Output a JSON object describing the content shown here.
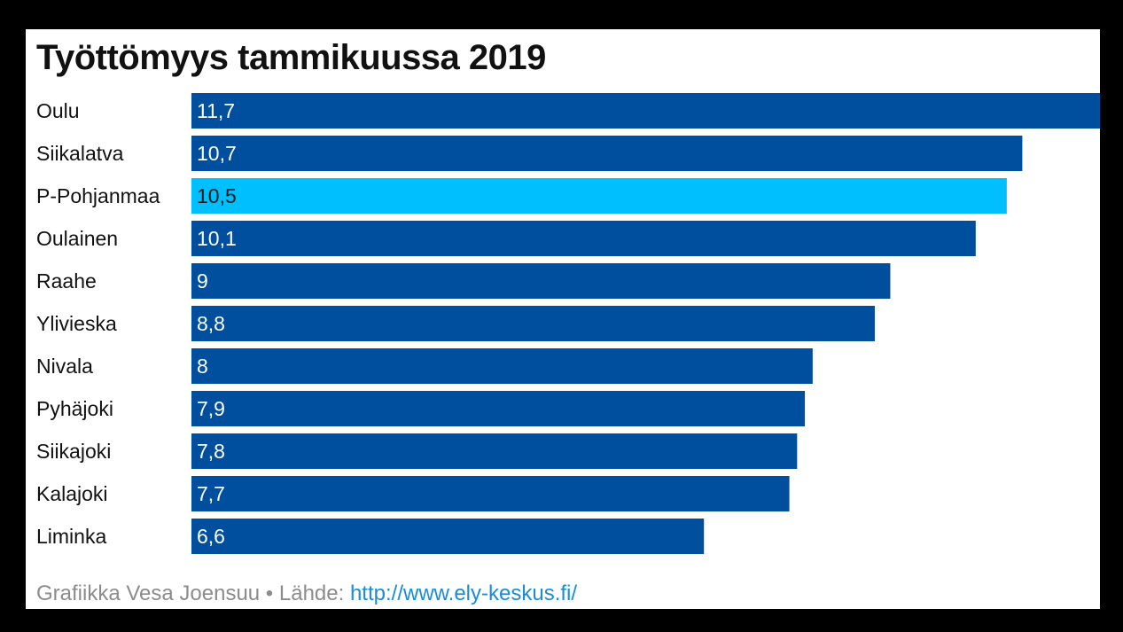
{
  "chart_data": {
    "type": "bar",
    "orientation": "horizontal",
    "title": "Työttömyys tammikuussa 2019",
    "categories": [
      "Oulu",
      "Siikalatva",
      "P-Pohjanmaa",
      "Oulainen",
      "Raahe",
      "Ylivieska",
      "Nivala",
      "Pyhäjoki",
      "Siikajoki",
      "Kalajoki",
      "Liminka"
    ],
    "values": [
      11.7,
      10.7,
      10.5,
      10.1,
      9,
      8.8,
      8,
      7.9,
      7.8,
      7.7,
      6.6
    ],
    "value_labels": [
      "11,7",
      "10,7",
      "10,5",
      "10,1",
      "9",
      "8,8",
      "8",
      "7,9",
      "7,8",
      "7,7",
      "6,6"
    ],
    "highlight_category": "P-Pohjanmaa",
    "xlim": [
      0,
      11.7
    ],
    "grid": false,
    "legend": "none",
    "colors": {
      "bar": "#004f9f",
      "highlight": "#00bfff",
      "label_on_dark": "#ffffff",
      "label_on_highlight": "#1a1a1a"
    }
  },
  "footer": {
    "credit": "Grafiikka Vesa Joensuu • Lähde: ",
    "source_link": "http://www.ely-keskus.fi/"
  }
}
